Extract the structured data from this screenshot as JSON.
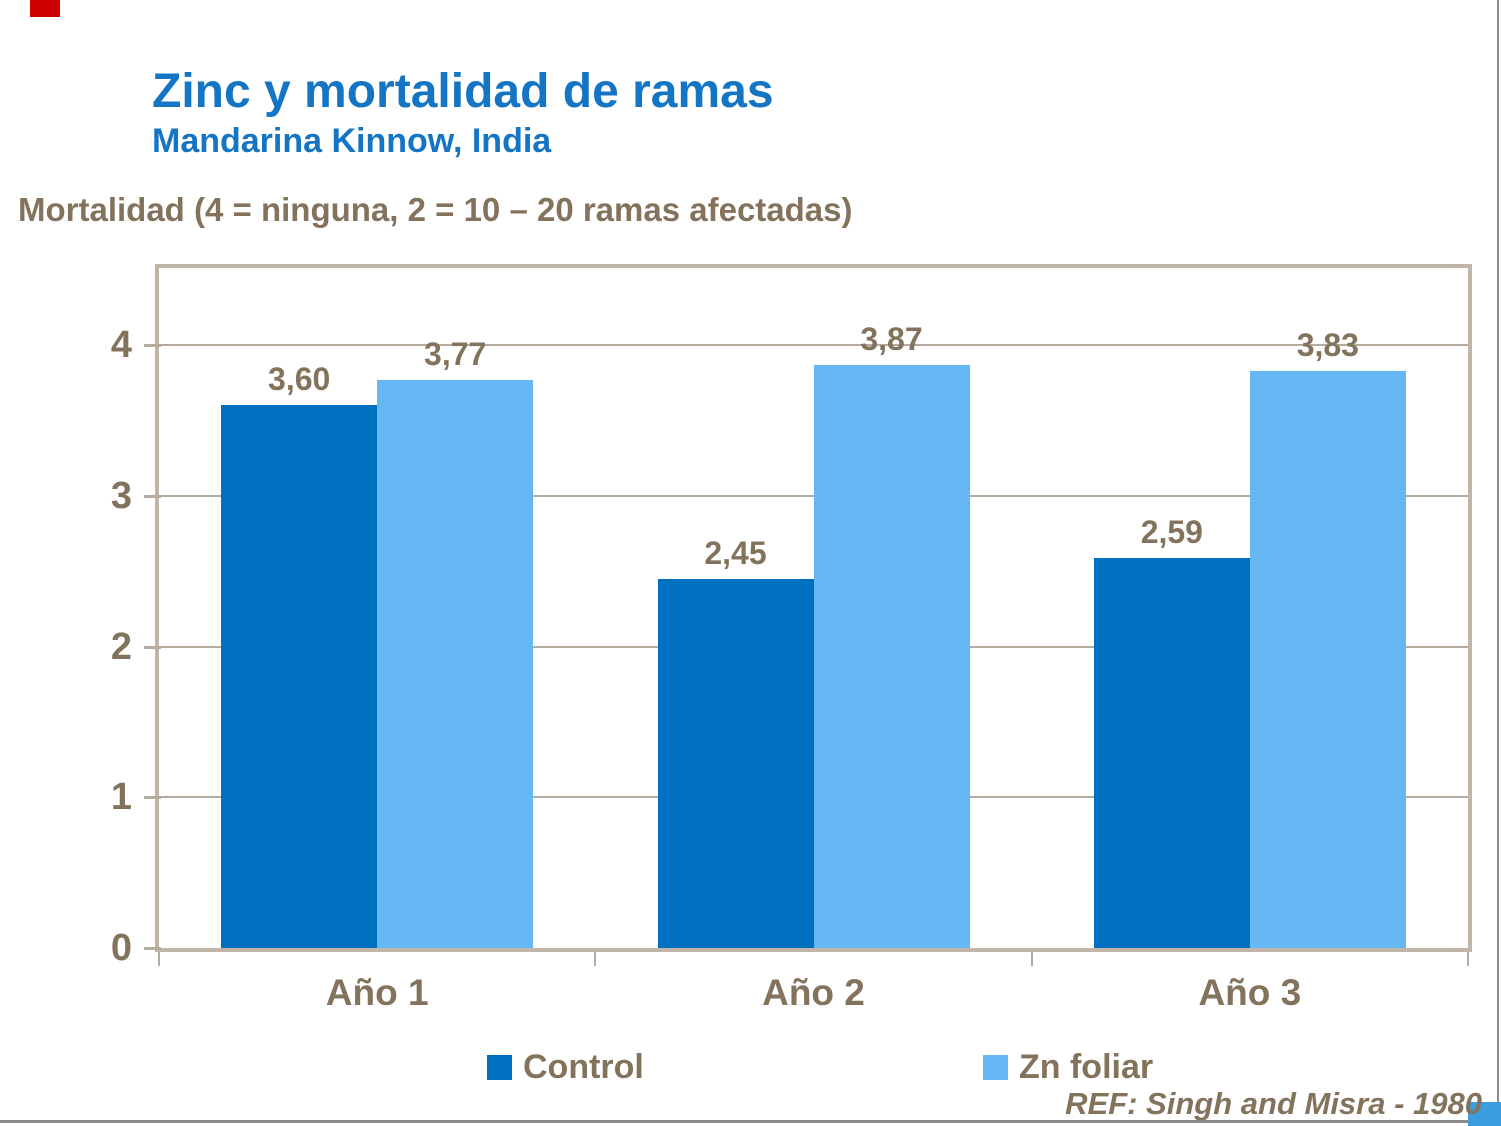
{
  "slide": {
    "title": "Zinc y mortalidad de ramas",
    "subtitle": "Mandarina Kinnow, India",
    "axis_note": "Mortalidad (4 = ninguna, 2 = 10 – 20 ramas afectadas)",
    "reference": "REF: Singh and Misra - 1980"
  },
  "chart_data": {
    "type": "bar",
    "title": "Zinc y mortalidad de ramas",
    "subtitle": "Mandarina Kinnow, India",
    "ylabel": "Mortalidad (4 = ninguna, 2 = 10 – 20 ramas afectadas)",
    "xlabel": "",
    "categories": [
      "Año 1",
      "Año 2",
      "Año 3"
    ],
    "series": [
      {
        "name": "Control",
        "color": "#0070C0",
        "values": [
          3.6,
          2.45,
          2.59
        ],
        "labels": [
          "3,60",
          "2,45",
          "2,59"
        ]
      },
      {
        "name": "Zn foliar",
        "color": "#66B8F5",
        "values": [
          3.77,
          3.87,
          3.83
        ],
        "labels": [
          "3,77",
          "3,87",
          "3,83"
        ]
      }
    ],
    "ylim": [
      0,
      4
    ],
    "yticks": [
      0,
      1,
      2,
      3,
      4
    ],
    "grid": true,
    "legend_position": "bottom",
    "annotation": "REF: Singh and Misra - 1980"
  },
  "colors": {
    "title_blue": "#1575C5",
    "text_brown": "#84735C",
    "frame_tan": "#C0B5A8",
    "grid_tan": "#B5AB9E",
    "accent_red": "#CC0000",
    "accent_blue": "#3C9EDF",
    "edge_gray": "#8C8C8C"
  }
}
